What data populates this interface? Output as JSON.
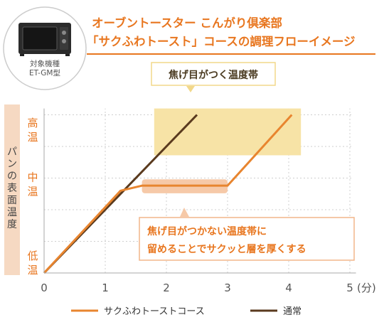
{
  "header": {
    "title_line1": "オーブントースター こんがり倶楽部",
    "title_line2": "「サクふわトースト」コースの調理フローイメージ",
    "product_caption_line1": "対象機種",
    "product_caption_line2": "ET-GM型"
  },
  "colors": {
    "accent": "#e8761f",
    "dark_series": "#5a3a1e",
    "orange_series": "#e8852f",
    "yellow_band": "#f7e3a6",
    "peach_band": "#f6c9a8",
    "axis": "#aaaaaa",
    "ylabel_bg": "#f6d9c2"
  },
  "annotations": {
    "high_band_label": "焦げ目がつく温度帯",
    "mid_band_label_line1": "焦げ目がつかない温度帯に",
    "mid_band_label_line2": "留めることでサクッと層を厚くする"
  },
  "chart_data": {
    "type": "line",
    "title": "「サクふわトースト」コースの調理フローイメージ",
    "ylabel": "パンの表面温度",
    "xlabel": "(分)",
    "xlim": [
      0,
      5
    ],
    "x_ticks": [
      0,
      1,
      2,
      3,
      4,
      5
    ],
    "x_tick_labels": [
      "0",
      "1",
      "2",
      "3",
      "4",
      "5"
    ],
    "y_categories": [
      "低温",
      "中温",
      "高温"
    ],
    "grid": true,
    "legend_position": "bottom",
    "series": [
      {
        "name": "サクふわトーストコース",
        "x": [
          0,
          1.25,
          1.6,
          3.0,
          4.05
        ],
        "y": [
          0,
          0.65,
          0.69,
          0.69,
          1.25
        ]
      },
      {
        "name": "通常",
        "x": [
          0,
          2.5
        ],
        "y": [
          0,
          1.25
        ]
      }
    ],
    "bands": [
      {
        "label": "焦げ目がつく温度帯",
        "x_range": [
          1.8,
          4.2
        ],
        "y_range": [
          0.93,
          1.3
        ]
      },
      {
        "label": "焦げ目がつかない温度帯",
        "x_range": [
          1.6,
          3.0
        ],
        "y_range": [
          0.63,
          0.74
        ]
      }
    ]
  },
  "legend": {
    "items": [
      {
        "label": "サクふわトーストコース",
        "color": "#e8852f"
      },
      {
        "label": "通常",
        "color": "#5a3a1e"
      }
    ]
  }
}
